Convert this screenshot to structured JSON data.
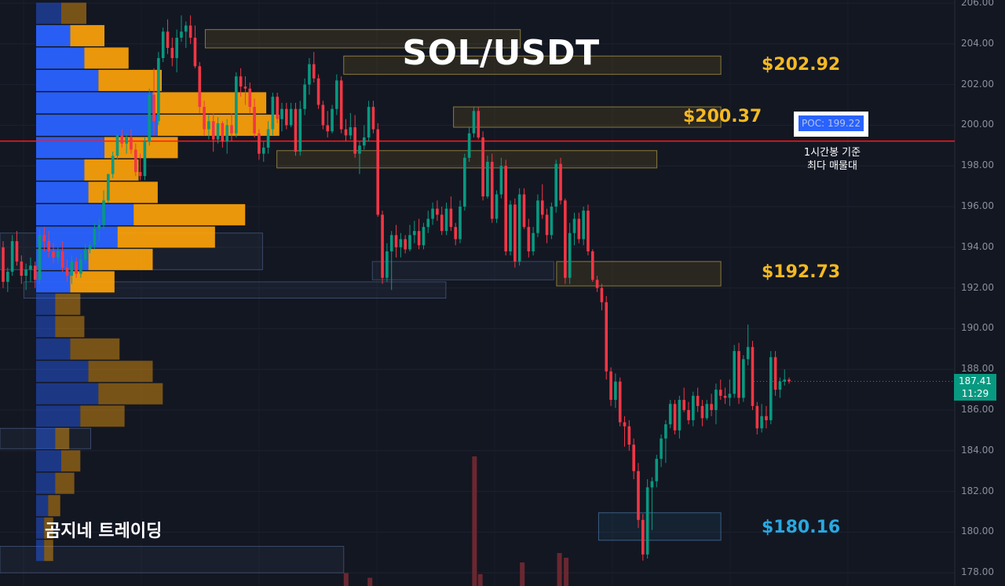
{
  "colors": {
    "background": "#131722",
    "up": "#089981",
    "down": "#f23645",
    "volume_profile_buy": "#2962ff",
    "volume_profile_sell": "#f59e0b",
    "level_gold": "#f5b921",
    "level_blue": "#29a8e0",
    "poc_line": "#ff1a1a"
  },
  "header": {
    "title": "SOL/USDT"
  },
  "chart_data": {
    "type": "candlestick",
    "symbol": "SOL/USDT",
    "timeframe_note": "1시간봉 기준",
    "ylim": [
      177.0,
      206.0
    ],
    "y_ticks": [
      "206.00",
      "204.00",
      "202.00",
      "200.00",
      "198.00",
      "196.00",
      "194.00",
      "192.00",
      "190.00",
      "188.00",
      "186.00",
      "184.00",
      "182.00",
      "180.00",
      "178.00"
    ],
    "y_tick_values": [
      206,
      204,
      202,
      200,
      198,
      196,
      194,
      192,
      190,
      188,
      186,
      184,
      182,
      180,
      178
    ],
    "current_price": "187.41",
    "countdown": "11:29",
    "poc": {
      "label": "POC: 199.22",
      "value": 199.22,
      "note_line1": "1시간봉 기준",
      "note_line2": "최다 매물대"
    },
    "levels": [
      {
        "label": "$202.92",
        "value": 202.92,
        "color": "gold"
      },
      {
        "label": "$200.37",
        "value": 200.37,
        "color": "gold"
      },
      {
        "label": "$192.73",
        "value": 192.73,
        "color": "gold"
      },
      {
        "label": "$180.16",
        "value": 180.16,
        "color": "blue"
      }
    ],
    "zones": [
      {
        "x0": 0.215,
        "x1": 0.545,
        "y_top": 204.7,
        "y_bottom": 203.8,
        "style": "gold"
      },
      {
        "x0": 0.36,
        "x1": 0.755,
        "y_top": 203.4,
        "y_bottom": 202.5,
        "style": "gold"
      },
      {
        "x0": 0.475,
        "x1": 0.755,
        "y_top": 200.9,
        "y_bottom": 199.9,
        "style": "gold"
      },
      {
        "x0": 0.29,
        "x1": 0.688,
        "y_top": 198.75,
        "y_bottom": 197.9,
        "style": "gold"
      },
      {
        "x0": 0.0,
        "x1": 0.275,
        "y_top": 194.7,
        "y_bottom": 192.9,
        "style": "gray"
      },
      {
        "x0": 0.39,
        "x1": 0.58,
        "y_top": 193.3,
        "y_bottom": 192.4,
        "style": "gray"
      },
      {
        "x0": 0.025,
        "x1": 0.467,
        "y_top": 192.3,
        "y_bottom": 191.5,
        "style": "gray"
      },
      {
        "x0": 0.583,
        "x1": 0.755,
        "y_top": 193.3,
        "y_bottom": 192.1,
        "style": "gold"
      },
      {
        "x0": 0.0,
        "x1": 0.095,
        "y_top": 185.1,
        "y_bottom": 184.1,
        "style": "gray"
      },
      {
        "x0": 0.627,
        "x1": 0.755,
        "y_top": 180.95,
        "y_bottom": 179.6,
        "style": "blue"
      },
      {
        "x0": 0.0,
        "x1": 0.36,
        "y_top": 179.3,
        "y_bottom": 178.0,
        "style": "gray"
      }
    ],
    "volume_profile": [
      {
        "price": 205.5,
        "buy": 0.025,
        "sell": 0.025,
        "dim": true
      },
      {
        "price": 204.4,
        "buy": 0.034,
        "sell": 0.034,
        "dim": false
      },
      {
        "price": 203.3,
        "buy": 0.048,
        "sell": 0.044,
        "dim": false
      },
      {
        "price": 202.2,
        "buy": 0.062,
        "sell": 0.063,
        "dim": false
      },
      {
        "price": 201.1,
        "buy": 0.116,
        "sell": 0.113,
        "dim": false
      },
      {
        "price": 200.0,
        "buy": 0.121,
        "sell": 0.121,
        "dim": false
      },
      {
        "price": 198.9,
        "buy": 0.068,
        "sell": 0.073,
        "dim": false
      },
      {
        "price": 197.8,
        "buy": 0.048,
        "sell": 0.054,
        "dim": false
      },
      {
        "price": 196.7,
        "buy": 0.052,
        "sell": 0.069,
        "dim": false
      },
      {
        "price": 195.6,
        "buy": 0.097,
        "sell": 0.111,
        "dim": false
      },
      {
        "price": 194.5,
        "buy": 0.081,
        "sell": 0.097,
        "dim": false
      },
      {
        "price": 193.4,
        "buy": 0.052,
        "sell": 0.064,
        "dim": false
      },
      {
        "price": 192.3,
        "buy": 0.034,
        "sell": 0.044,
        "dim": false
      },
      {
        "price": 191.2,
        "buy": 0.019,
        "sell": 0.025,
        "dim": true
      },
      {
        "price": 190.1,
        "buy": 0.019,
        "sell": 0.029,
        "dim": true
      },
      {
        "price": 189.0,
        "buy": 0.034,
        "sell": 0.049,
        "dim": true
      },
      {
        "price": 187.9,
        "buy": 0.052,
        "sell": 0.064,
        "dim": true
      },
      {
        "price": 186.8,
        "buy": 0.062,
        "sell": 0.064,
        "dim": true
      },
      {
        "price": 185.7,
        "buy": 0.044,
        "sell": 0.044,
        "dim": true
      },
      {
        "price": 184.6,
        "buy": 0.019,
        "sell": 0.014,
        "dim": true
      },
      {
        "price": 183.5,
        "buy": 0.025,
        "sell": 0.019,
        "dim": true
      },
      {
        "price": 182.4,
        "buy": 0.019,
        "sell": 0.019,
        "dim": true
      },
      {
        "price": 181.3,
        "buy": 0.012,
        "sell": 0.012,
        "dim": true
      },
      {
        "price": 180.2,
        "buy": 0.008,
        "sell": 0.009,
        "dim": true
      },
      {
        "price": 179.1,
        "buy": 0.008,
        "sell": 0.009,
        "dim": true
      }
    ],
    "candles": [
      [
        194.0,
        194.3,
        192.0,
        192.3
      ],
      [
        192.3,
        193.0,
        191.8,
        192.8
      ],
      [
        192.8,
        194.6,
        192.6,
        194.3
      ],
      [
        194.3,
        194.8,
        193.1,
        193.3
      ],
      [
        193.3,
        193.6,
        192.2,
        192.6
      ],
      [
        192.6,
        193.2,
        191.9,
        192.9
      ],
      [
        192.9,
        193.5,
        192.3,
        193.1
      ],
      [
        193.1,
        193.3,
        192.0,
        192.4
      ],
      [
        192.4,
        194.9,
        192.2,
        194.6
      ],
      [
        194.6,
        195.0,
        193.8,
        194.3
      ],
      [
        194.3,
        194.8,
        193.5,
        193.8
      ],
      [
        193.8,
        194.2,
        193.2,
        193.5
      ],
      [
        193.5,
        194.0,
        193.2,
        193.8
      ],
      [
        193.8,
        194.3,
        192.8,
        193.0
      ],
      [
        193.0,
        193.4,
        192.3,
        192.6
      ],
      [
        192.6,
        193.6,
        192.2,
        193.3
      ],
      [
        193.3,
        193.5,
        192.5,
        192.7
      ],
      [
        192.7,
        193.7,
        192.5,
        193.4
      ],
      [
        193.4,
        194.2,
        193.2,
        193.9
      ],
      [
        193.9,
        194.3,
        193.7,
        194.1
      ],
      [
        194.1,
        195.2,
        193.9,
        194.9
      ],
      [
        194.9,
        195.4,
        194.3,
        195.1
      ],
      [
        195.1,
        196.8,
        194.9,
        196.3
      ],
      [
        196.3,
        197.6,
        196.2,
        197.6
      ],
      [
        197.6,
        198.7,
        197.4,
        198.5
      ],
      [
        198.5,
        199.6,
        198.3,
        199.5
      ],
      [
        199.5,
        199.8,
        198.9,
        199.1
      ],
      [
        199.1,
        199.6,
        198.6,
        199.4
      ],
      [
        199.4,
        199.8,
        198.6,
        198.8
      ],
      [
        198.8,
        199.1,
        197.5,
        197.7
      ],
      [
        197.7,
        198.6,
        197.3,
        197.5
      ],
      [
        197.5,
        199.4,
        197.3,
        199.2
      ],
      [
        199.2,
        201.8,
        199.0,
        201.5
      ],
      [
        201.5,
        202.8,
        199.5,
        200.2
      ],
      [
        200.2,
        203.6,
        200.0,
        203.3
      ],
      [
        203.3,
        204.8,
        203.1,
        204.6
      ],
      [
        204.6,
        205.2,
        203.5,
        203.8
      ],
      [
        203.8,
        204.3,
        202.9,
        203.3
      ],
      [
        203.3,
        204.7,
        202.6,
        204.3
      ],
      [
        204.3,
        205.4,
        204.1,
        204.6
      ],
      [
        204.6,
        205.1,
        203.8,
        204.9
      ],
      [
        204.9,
        205.4,
        204.0,
        204.3
      ],
      [
        204.3,
        204.9,
        202.8,
        202.9
      ],
      [
        202.9,
        203.1,
        200.6,
        200.9
      ],
      [
        200.9,
        201.2,
        199.5,
        199.8
      ],
      [
        199.8,
        200.5,
        199.3,
        200.2
      ],
      [
        200.2,
        200.6,
        198.7,
        199.3
      ],
      [
        199.3,
        200.4,
        199.1,
        200.1
      ],
      [
        200.1,
        200.2,
        198.9,
        199.2
      ],
      [
        199.2,
        200.3,
        198.6,
        200.0
      ],
      [
        200.0,
        200.6,
        199.2,
        199.6
      ],
      [
        199.6,
        202.6,
        199.4,
        202.4
      ],
      [
        202.4,
        202.8,
        201.4,
        201.9
      ],
      [
        201.9,
        202.4,
        201.0,
        201.8
      ],
      [
        201.8,
        202.1,
        200.6,
        200.9
      ],
      [
        200.9,
        201.3,
        199.4,
        199.6
      ],
      [
        199.6,
        199.8,
        198.3,
        198.6
      ],
      [
        198.6,
        199.2,
        198.2,
        198.9
      ],
      [
        198.9,
        200.2,
        198.6,
        199.8
      ],
      [
        199.8,
        201.6,
        199.5,
        201.4
      ],
      [
        201.4,
        201.6,
        200.1,
        200.3
      ],
      [
        200.3,
        201.1,
        199.7,
        200.8
      ],
      [
        200.8,
        201.1,
        199.8,
        200.0
      ],
      [
        200.0,
        201.1,
        199.9,
        200.8
      ],
      [
        200.8,
        201.1,
        198.5,
        198.7
      ],
      [
        198.7,
        201.2,
        198.5,
        200.8
      ],
      [
        200.8,
        202.3,
        200.5,
        202.0
      ],
      [
        202.0,
        203.3,
        201.5,
        203.0
      ],
      [
        203.0,
        203.6,
        202.1,
        202.3
      ],
      [
        202.3,
        202.5,
        200.8,
        201.0
      ],
      [
        201.0,
        201.2,
        199.8,
        200.0
      ],
      [
        200.0,
        200.7,
        199.4,
        199.7
      ],
      [
        199.7,
        201.0,
        199.6,
        200.8
      ],
      [
        200.8,
        202.5,
        200.5,
        202.2
      ],
      [
        202.2,
        202.4,
        199.6,
        199.8
      ],
      [
        199.8,
        200.3,
        199.2,
        199.5
      ],
      [
        199.5,
        200.6,
        199.3,
        199.9
      ],
      [
        199.9,
        200.5,
        198.4,
        198.6
      ],
      [
        198.6,
        199.2,
        197.6,
        199.0
      ],
      [
        199.0,
        200.0,
        198.8,
        199.4
      ],
      [
        199.4,
        201.2,
        199.2,
        200.9
      ],
      [
        200.9,
        201.2,
        199.6,
        199.8
      ],
      [
        199.8,
        200.1,
        195.5,
        195.6
      ],
      [
        195.6,
        195.8,
        192.2,
        192.5
      ],
      [
        192.5,
        194.2,
        192.3,
        193.8
      ],
      [
        193.8,
        194.8,
        191.9,
        194.6
      ],
      [
        194.6,
        195.1,
        193.5,
        194.0
      ],
      [
        194.0,
        194.7,
        193.5,
        194.4
      ],
      [
        194.4,
        194.6,
        193.7,
        193.9
      ],
      [
        193.9,
        195.1,
        193.8,
        194.6
      ],
      [
        194.6,
        195.3,
        194.2,
        194.8
      ],
      [
        194.8,
        195.4,
        193.9,
        194.1
      ],
      [
        194.1,
        195.2,
        193.9,
        195.0
      ],
      [
        195.0,
        195.8,
        194.7,
        195.4
      ],
      [
        195.4,
        196.2,
        195.1,
        195.9
      ],
      [
        195.9,
        196.3,
        195.3,
        195.6
      ],
      [
        195.6,
        196.0,
        194.6,
        194.8
      ],
      [
        194.8,
        196.2,
        194.6,
        195.9
      ],
      [
        195.9,
        196.5,
        194.8,
        195.0
      ],
      [
        195.0,
        195.2,
        194.1,
        194.4
      ],
      [
        194.4,
        196.3,
        194.2,
        196.0
      ],
      [
        196.0,
        198.6,
        195.8,
        198.4
      ],
      [
        198.4,
        199.9,
        198.2,
        199.6
      ],
      [
        199.6,
        200.9,
        199.4,
        200.7
      ],
      [
        200.7,
        200.9,
        199.3,
        199.4
      ],
      [
        199.4,
        199.7,
        196.3,
        196.5
      ],
      [
        196.5,
        198.5,
        196.4,
        198.2
      ],
      [
        198.2,
        198.6,
        195.2,
        195.4
      ],
      [
        195.4,
        196.8,
        195.2,
        196.6
      ],
      [
        196.6,
        198.4,
        196.4,
        198.0
      ],
      [
        198.0,
        198.3,
        193.6,
        193.8
      ],
      [
        193.8,
        196.3,
        193.6,
        196.1
      ],
      [
        196.1,
        196.4,
        193.0,
        193.3
      ],
      [
        193.3,
        196.9,
        193.1,
        196.6
      ],
      [
        196.6,
        196.9,
        194.9,
        195.0
      ],
      [
        195.0,
        195.4,
        193.5,
        193.8
      ],
      [
        193.8,
        195.0,
        193.6,
        194.7
      ],
      [
        194.7,
        196.6,
        194.5,
        196.3
      ],
      [
        196.3,
        197.1,
        195.4,
        195.6
      ],
      [
        195.6,
        195.9,
        194.2,
        194.6
      ],
      [
        194.6,
        196.2,
        194.4,
        196.0
      ],
      [
        196.0,
        198.3,
        195.7,
        198.1
      ],
      [
        198.1,
        198.4,
        196.1,
        196.3
      ],
      [
        196.3,
        196.4,
        192.2,
        192.5
      ],
      [
        192.5,
        195.2,
        192.2,
        194.7
      ],
      [
        194.7,
        195.7,
        194.1,
        195.4
      ],
      [
        195.4,
        195.7,
        194.2,
        194.4
      ],
      [
        194.4,
        196.0,
        194.1,
        195.8
      ],
      [
        195.8,
        196.1,
        193.6,
        193.8
      ],
      [
        193.8,
        193.9,
        192.3,
        192.4
      ],
      [
        192.4,
        192.6,
        191.8,
        192.0
      ],
      [
        192.0,
        192.2,
        190.9,
        191.3
      ],
      [
        191.3,
        191.6,
        187.5,
        187.9
      ],
      [
        187.9,
        188.1,
        186.2,
        186.5
      ],
      [
        186.5,
        187.8,
        186.1,
        187.4
      ],
      [
        187.4,
        187.6,
        185.2,
        185.4
      ],
      [
        185.4,
        185.7,
        184.2,
        185.2
      ],
      [
        185.2,
        185.5,
        184.0,
        184.3
      ],
      [
        184.3,
        184.6,
        182.6,
        183.0
      ],
      [
        183.0,
        183.4,
        180.2,
        180.6
      ],
      [
        180.6,
        180.9,
        178.6,
        178.9
      ],
      [
        178.9,
        182.6,
        178.7,
        182.2
      ],
      [
        182.2,
        182.7,
        180.1,
        182.5
      ],
      [
        182.5,
        183.8,
        182.2,
        183.6
      ],
      [
        183.6,
        184.8,
        183.2,
        184.6
      ],
      [
        184.6,
        185.5,
        183.4,
        185.3
      ],
      [
        185.3,
        186.5,
        185.1,
        186.3
      ],
      [
        186.3,
        186.5,
        184.8,
        185.0
      ],
      [
        185.0,
        186.7,
        184.6,
        186.5
      ],
      [
        186.5,
        187.1,
        185.9,
        186.0
      ],
      [
        186.0,
        186.4,
        185.3,
        185.5
      ],
      [
        185.5,
        186.9,
        185.2,
        186.7
      ],
      [
        186.7,
        187.1,
        185.9,
        186.2
      ],
      [
        186.2,
        186.5,
        185.2,
        185.6
      ],
      [
        185.6,
        186.5,
        185.5,
        186.3
      ],
      [
        186.3,
        186.8,
        185.7,
        186.0
      ],
      [
        186.0,
        187.3,
        185.3,
        187.0
      ],
      [
        187.0,
        187.5,
        186.5,
        186.7
      ],
      [
        186.7,
        187.1,
        186.3,
        186.6
      ],
      [
        186.6,
        187.5,
        186.2,
        186.8
      ],
      [
        186.8,
        189.2,
        186.6,
        188.9
      ],
      [
        188.9,
        189.3,
        186.3,
        186.6
      ],
      [
        186.6,
        188.7,
        186.4,
        188.5
      ],
      [
        188.5,
        190.2,
        188.2,
        189.1
      ],
      [
        189.1,
        189.4,
        186.0,
        186.2
      ],
      [
        186.2,
        186.4,
        184.8,
        185.1
      ],
      [
        185.1,
        186.3,
        184.9,
        185.7
      ],
      [
        185.7,
        186.2,
        185.1,
        185.5
      ],
      [
        185.5,
        188.9,
        185.3,
        188.6
      ],
      [
        188.6,
        188.9,
        186.7,
        187.0
      ],
      [
        187.0,
        187.6,
        186.6,
        187.4
      ],
      [
        187.4,
        188.0,
        187.2,
        187.5
      ],
      [
        187.5,
        187.6,
        187.3,
        187.41
      ]
    ],
    "volume_bars": [
      {
        "x": 0.3625,
        "value": 0.55
      },
      {
        "x": 0.3875,
        "value": 0.35
      },
      {
        "x": 0.497,
        "value": 5.5
      },
      {
        "x": 0.503,
        "value": 0.5
      },
      {
        "x": 0.547,
        "value": 1.0
      },
      {
        "x": 0.586,
        "value": 1.4
      },
      {
        "x": 0.593,
        "value": 1.2
      }
    ]
  },
  "branding": {
    "text": "곰지네 트레이딩"
  }
}
